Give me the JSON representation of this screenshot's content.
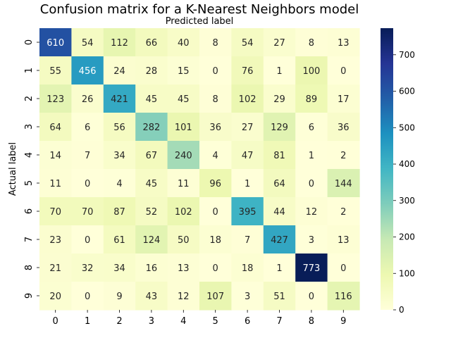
{
  "chart_data": {
    "type": "heatmap",
    "title": "Confusion matrix for a K-Nearest Neighbors  model",
    "xlabel": "Predicted label",
    "ylabel": "Actual label",
    "x_categories": [
      "0",
      "1",
      "2",
      "3",
      "4",
      "5",
      "6",
      "7",
      "8",
      "9"
    ],
    "y_categories": [
      "0",
      "1",
      "2",
      "3",
      "4",
      "5",
      "6",
      "7",
      "8",
      "9"
    ],
    "values": [
      [
        610,
        54,
        112,
        66,
        40,
        8,
        54,
        27,
        8,
        13
      ],
      [
        55,
        456,
        24,
        28,
        15,
        0,
        76,
        1,
        100,
        0
      ],
      [
        123,
        26,
        421,
        45,
        45,
        8,
        102,
        29,
        89,
        17
      ],
      [
        64,
        6,
        56,
        282,
        101,
        36,
        27,
        129,
        6,
        36
      ],
      [
        14,
        7,
        34,
        67,
        240,
        4,
        47,
        81,
        1,
        2
      ],
      [
        11,
        0,
        4,
        45,
        11,
        96,
        1,
        64,
        0,
        144
      ],
      [
        70,
        70,
        87,
        52,
        102,
        0,
        395,
        44,
        12,
        2
      ],
      [
        23,
        0,
        61,
        124,
        50,
        18,
        7,
        427,
        3,
        13
      ],
      [
        21,
        32,
        34,
        16,
        13,
        0,
        18,
        1,
        773,
        0
      ],
      [
        20,
        0,
        9,
        43,
        12,
        107,
        3,
        51,
        0,
        116
      ]
    ],
    "colormap": "YlGnBu",
    "colorbar": {
      "range": [
        0,
        773
      ],
      "ticks": [
        "0",
        "100",
        "200",
        "300",
        "400",
        "500",
        "600",
        "700"
      ]
    },
    "xaxis_position": "top-label-bottom-ticks",
    "grid": false,
    "legend": "colorbar-right"
  }
}
